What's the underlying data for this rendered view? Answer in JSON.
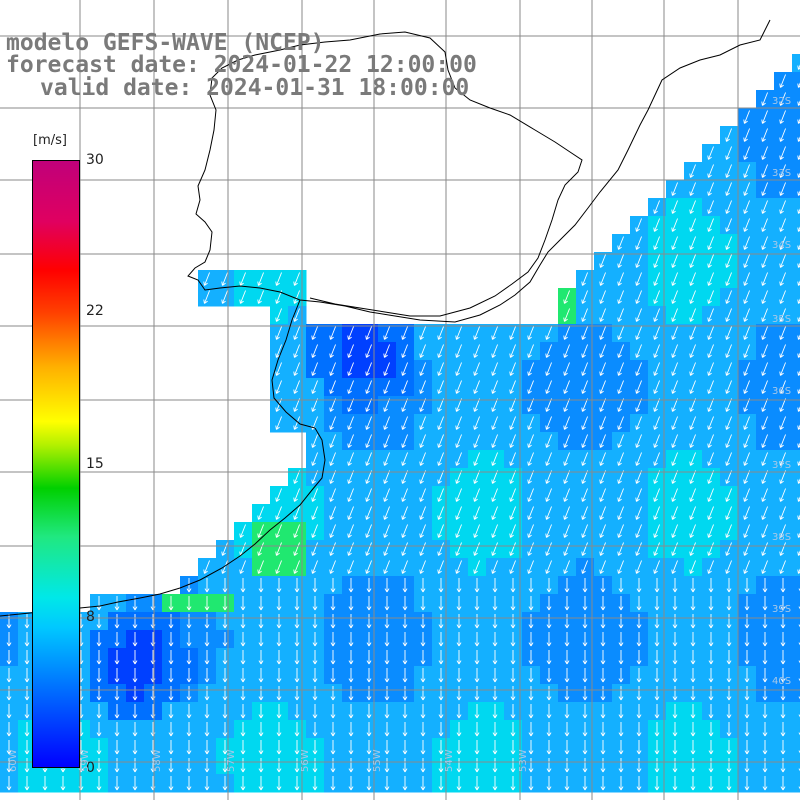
{
  "titles": {
    "model": "modelo GEFS-WAVE (NCEP)",
    "forecast": "forecast date: 2024-01-22 12:00:00",
    "valid": "valid date: 2024-01-31 18:00:00"
  },
  "colorbar": {
    "unit": "[m/s]",
    "ticks": [
      "30",
      "22",
      "15",
      "8",
      "0"
    ],
    "colors": [
      "#0000ff",
      "#00c8ff",
      "#00e8e8",
      "#00d000",
      "#ffff00",
      "#ff0000",
      "#c0007a"
    ]
  },
  "lat_labels": [
    "32S",
    "33S",
    "34S",
    "35S",
    "36S",
    "37S",
    "38S",
    "39S",
    "40S"
  ],
  "lon_labels": [
    "60W",
    "59W",
    "58W",
    "57W",
    "56W",
    "55W",
    "54W",
    "53W"
  ],
  "map": {
    "land_color": "#ffffff",
    "grid_color": "#8a8a8a",
    "arrow_color": "#ffffff",
    "ocean_base": "#1aa0ff"
  }
}
